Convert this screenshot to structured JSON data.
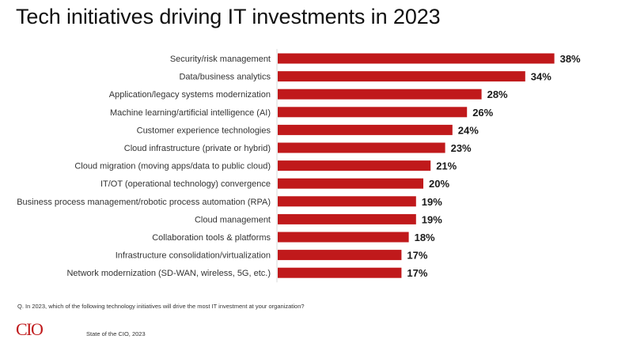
{
  "chart_data": {
    "type": "bar",
    "orientation": "horizontal",
    "title": "Tech initiatives driving IT investments in 2023",
    "xlabel": "",
    "ylabel": "",
    "xlim": [
      0,
      40
    ],
    "grid": false,
    "value_suffix": "%",
    "bar_color": "#C0191B",
    "categories": [
      "Security/risk management",
      "Data/business analytics",
      "Application/legacy systems modernization",
      "Machine learning/artificial intelligence (AI)",
      "Customer experience technologies",
      "Cloud infrastructure (private or hybrid)",
      "Cloud migration (moving apps/data to public cloud)",
      "IT/OT (operational technology) convergence",
      "Business process management/robotic process automation (RPA)",
      "Cloud management",
      "Collaboration tools & platforms",
      "Infrastructure consolidation/virtualization",
      "Network modernization (SD-WAN, wireless, 5G, etc.)"
    ],
    "values": [
      38,
      34,
      28,
      26,
      24,
      23,
      21,
      20,
      19,
      19,
      18,
      17,
      17
    ],
    "data_labels": [
      "38%",
      "34%",
      "28%",
      "26%",
      "24%",
      "23%",
      "21%",
      "20%",
      "19%",
      "19%",
      "18%",
      "17%",
      "17%"
    ]
  },
  "footer": {
    "question": "Q. In 2023, which of the following technology initiatives will drive the most IT investment at your organization?",
    "logo_text": "CIO",
    "source": "State of the CIO, 2023"
  }
}
